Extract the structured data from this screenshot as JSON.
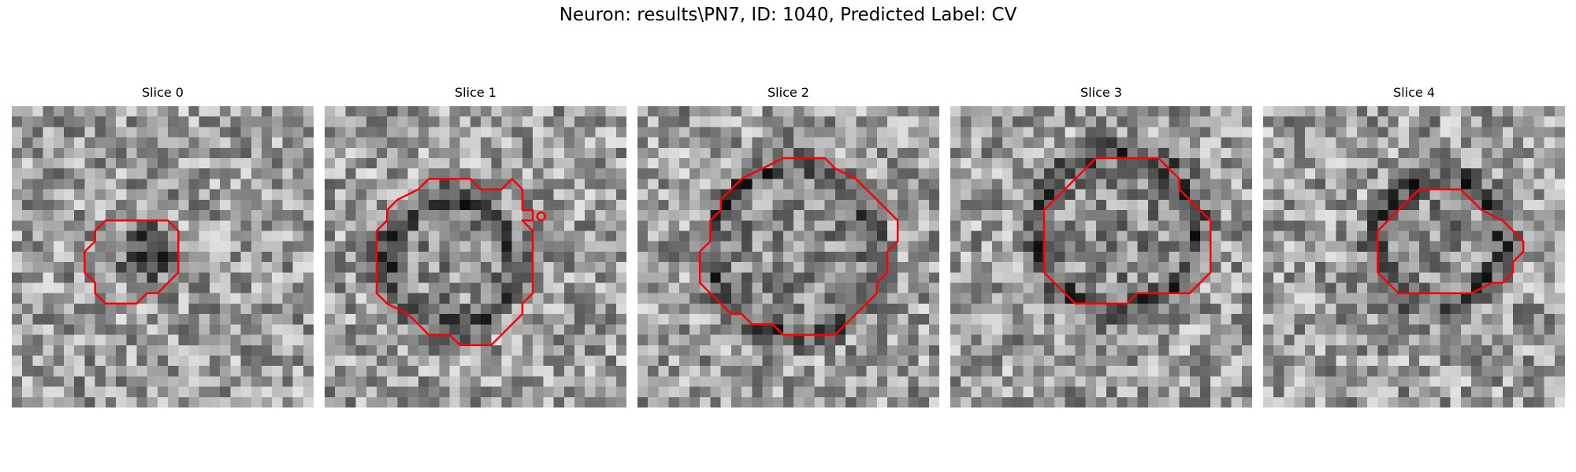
{
  "figure": {
    "title": "Neuron: results\\PN7, ID: 1040, Predicted Label: CV"
  },
  "panels": [
    {
      "title": "Slice 0",
      "contour_color": "#ff0000"
    },
    {
      "title": "Slice 1",
      "contour_color": "#ff0000"
    },
    {
      "title": "Slice 2",
      "contour_color": "#ff0000"
    },
    {
      "title": "Slice 3",
      "contour_color": "#ff0000"
    },
    {
      "title": "Slice 4",
      "contour_color": "#ff0000"
    }
  ],
  "image": {
    "colormap": "grayscale",
    "overlay": "red contour outline"
  }
}
